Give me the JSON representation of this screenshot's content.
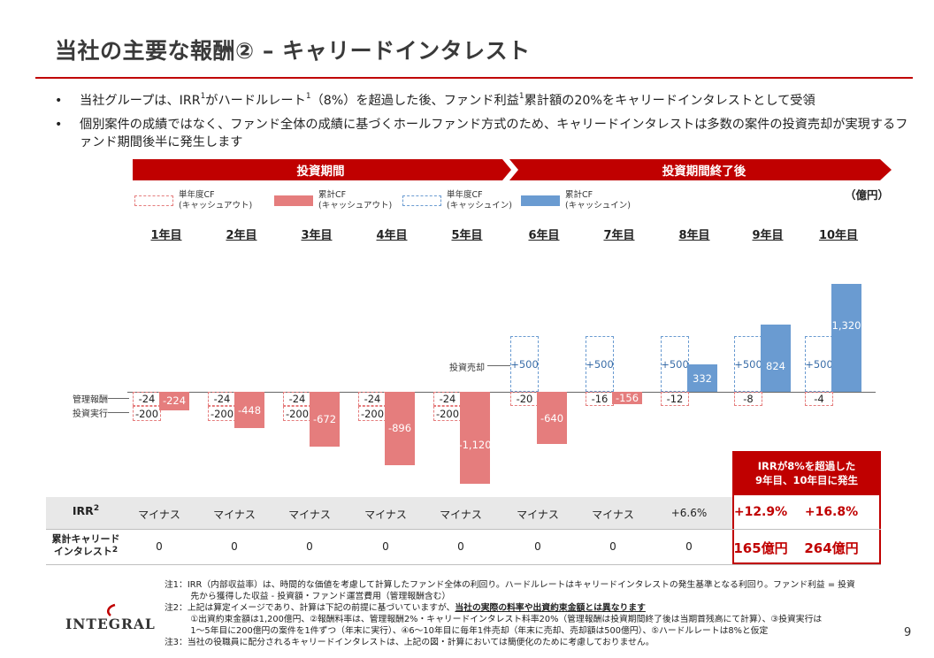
{
  "title": "当社の主要な報酬② – キャリードインタレスト",
  "bullets": [
    {
      "pre": "当社グループは、IRR",
      "sup1": "1",
      "mid": "がハードルレート",
      "sup2": "1",
      "mid2": "（8%）を超過した後、ファンド利益",
      "sup3": "1",
      "post": "累計額の20%をキャリードインタレストとして受領"
    },
    {
      "text": "個別案件の成績ではなく、ファンド全体の成績に基づくホールファンド方式のため、キャリードインタレストは多数の案件の投資売却が実現するファンド期間後半に発生します"
    }
  ],
  "phases": {
    "investment": "投資期間",
    "post_investment": "投資期間終了後"
  },
  "legend": [
    {
      "line1": "単年度CF",
      "line2": "(キャッシュアウト)",
      "style": "dashed-red"
    },
    {
      "line1": "累計CF",
      "line2": "(キャッシュアウト)",
      "style": "solid-red"
    },
    {
      "line1": "単年度CF",
      "line2": "(キャッシュイン)",
      "style": "dashed-blue"
    },
    {
      "line1": "累計CF",
      "line2": "(キャッシュイン)",
      "style": "solid-blue"
    }
  ],
  "unit": "（億円）",
  "side_labels": {
    "mgmt_fee": "管理報酬",
    "investment": "投資実行",
    "sale": "投資売却"
  },
  "colors": {
    "accent_red": "#c00000",
    "cum_out": "#e57d7d",
    "cum_in": "#6a9bd1"
  },
  "chart_data": {
    "type": "bar",
    "categories": [
      "1年目",
      "2年目",
      "3年目",
      "4年目",
      "5年目",
      "6年目",
      "7年目",
      "8年目",
      "9年目",
      "10年目"
    ],
    "series": [
      {
        "name": "単年度CF(キャッシュアウト) 管理報酬",
        "values": [
          -24,
          -24,
          -24,
          -24,
          -24,
          -20,
          -16,
          -12,
          -8,
          -4
        ]
      },
      {
        "name": "単年度CF(キャッシュアウト) 投資実行",
        "values": [
          -200,
          -200,
          -200,
          -200,
          -200,
          null,
          null,
          null,
          null,
          null
        ]
      },
      {
        "name": "単年度CF(キャッシュイン)",
        "values": [
          null,
          null,
          null,
          null,
          null,
          500,
          500,
          500,
          500,
          500
        ]
      },
      {
        "name": "累計CF",
        "values": [
          -224,
          -448,
          -672,
          -896,
          -1120,
          -640,
          -156,
          332,
          824,
          1320
        ]
      }
    ],
    "labels": {
      "mgmt": [
        "-24",
        "-24",
        "-24",
        "-24",
        "-24",
        "-20",
        "-16",
        "-12",
        "-8",
        "-4"
      ],
      "invest": [
        "-200",
        "-200",
        "-200",
        "-200",
        "-200",
        "",
        "",
        "",
        "",
        ""
      ],
      "sale": [
        "",
        "",
        "",
        "",
        "",
        "+500",
        "+500",
        "+500",
        "+500",
        "+500"
      ],
      "cum": [
        "-224",
        "-448",
        "-672",
        "-896",
        "-1,120",
        "-640",
        "-156",
        "332",
        "824",
        "1,320"
      ]
    }
  },
  "highlight_title": "IRRが8%を超過した\n9年目、10年目に発生",
  "table": {
    "irr_label": "IRR",
    "irr_sup": "2",
    "irr_values": [
      "マイナス",
      "マイナス",
      "マイナス",
      "マイナス",
      "マイナス",
      "マイナス",
      "マイナス",
      "+6.6%",
      "+12.9%",
      "+16.8%"
    ],
    "carry_label": "累計キャリード\nインタレスト",
    "carry_sup": "2",
    "carry_values": [
      "0",
      "0",
      "0",
      "0",
      "0",
      "0",
      "0",
      "0",
      "165億円",
      "264億円"
    ]
  },
  "notes": [
    "注1：IRR（内部収益率）は、時間的な価値を考慮して計算したファンド全体の利回り。ハードルレートはキャリードインタレストの発生基準となる利回り。ファンド利益 = 投資",
    "　　　先から獲得した収益 - 投資額・ファンド運営費用（管理報酬含む）",
    "注2：上記は算定イメージであり、計算は下記の前提に基づいていますが、",
    "当社の実際の料率や出資約束金額とは異なります",
    "　　　①出資約束金額は1,200億円、②報酬料率は、管理報酬2%・キャリードインタレスト料率20%（管理報酬は投資期間終了後は当期首残高にて計算）、③投資実行は",
    "　　　1～5年目に200億円の案件を1件ずつ（年末に実行）、④6～10年目に毎年1件売却（年末に売却、売却額は500億円）、⑤ハードルレートは8%と仮定",
    "注3：当社の役職員に配分されるキャリードインタレストは、上記の図・計算においては簡便化のために考慮しておりません。"
  ],
  "logo": "INTEGRAL",
  "page_number": "9"
}
